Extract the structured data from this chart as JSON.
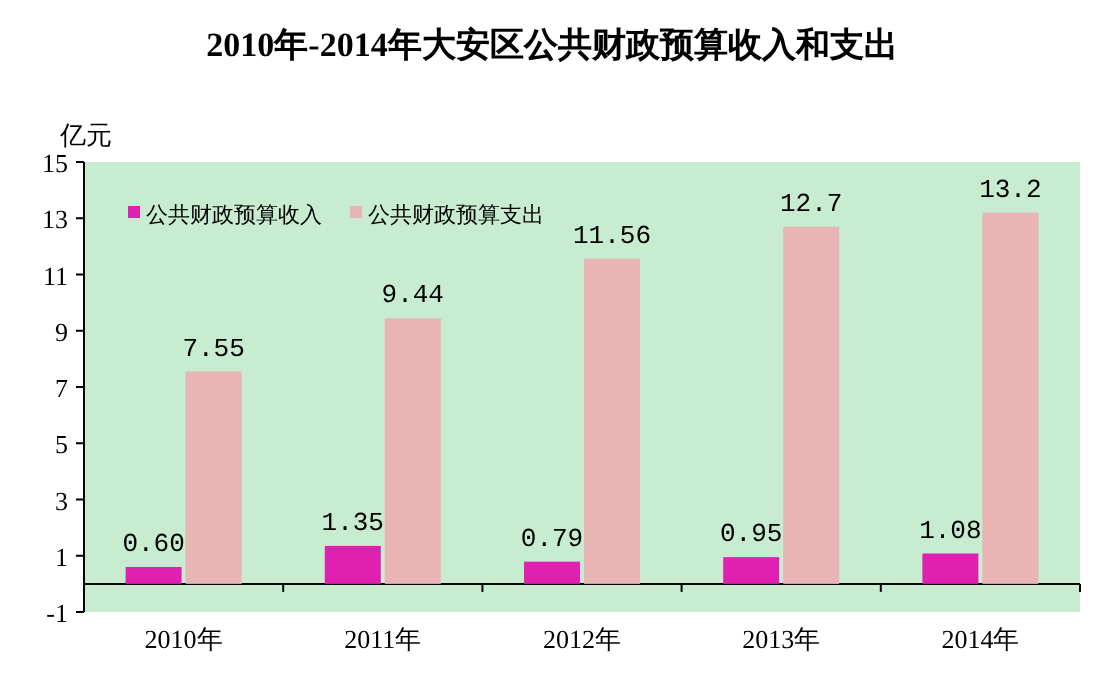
{
  "chart_data": {
    "type": "bar",
    "title": "2010年-2014年大安区公共财政预算收入和支出",
    "ylabel": "亿元",
    "categories": [
      "2010年",
      "2011年",
      "2012年",
      "2013年",
      "2014年"
    ],
    "series": [
      {
        "name": "公共财政预算收入",
        "color": "#e020b0",
        "values": [
          0.6,
          1.35,
          0.79,
          0.95,
          1.08
        ],
        "value_labels": [
          "0.60",
          "1.35",
          "0.79",
          "0.95",
          "1.08"
        ]
      },
      {
        "name": "公共财政预算支出",
        "color": "#e8b4b4",
        "values": [
          7.55,
          9.44,
          11.56,
          12.7,
          13.2
        ],
        "value_labels": [
          "7.55",
          "9.44",
          "11.56",
          "12.7",
          "13.2"
        ]
      }
    ],
    "ylim": [
      -1,
      15
    ],
    "yticks": [
      -1,
      1,
      3,
      5,
      7,
      9,
      11,
      13,
      15
    ],
    "grid": false,
    "legend": "top left"
  }
}
